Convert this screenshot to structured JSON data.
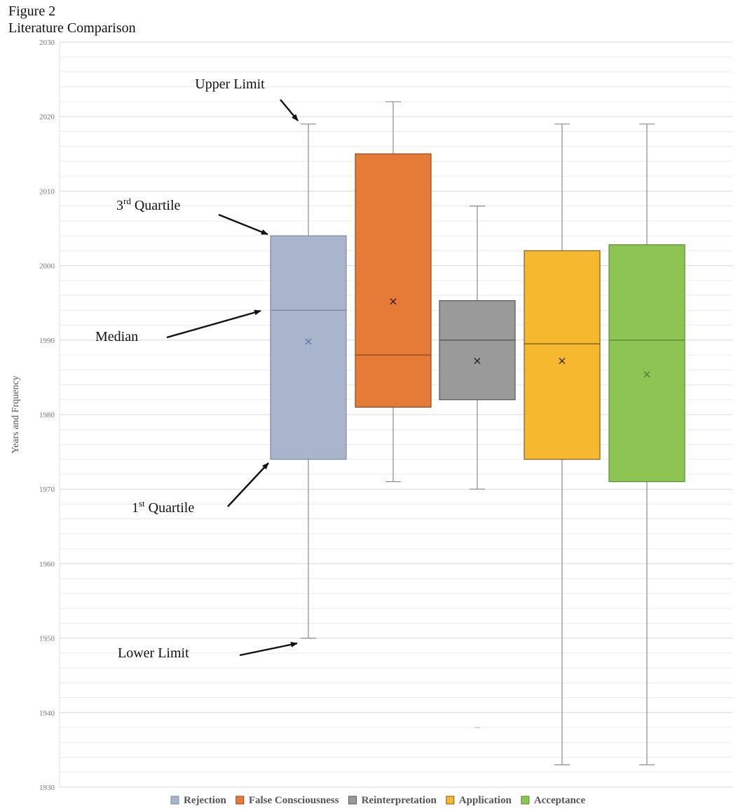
{
  "figure": {
    "number": "Figure 2",
    "title": "Literature Comparison"
  },
  "chart_data": {
    "type": "box",
    "ylabel": "Years and Frquency",
    "ylim": [
      1930,
      2030
    ],
    "yticks": [
      1930,
      1940,
      1950,
      1960,
      1970,
      1980,
      1990,
      2000,
      2010,
      2020,
      2030
    ],
    "grid": true,
    "legend_position": "bottom-right",
    "series": [
      {
        "name": "Rejection",
        "color": "#a9b5cc",
        "stroke": "#7c88a0",
        "mean_color": "#6577a3",
        "whisker_low": 1950,
        "q1": 1974,
        "median": 1994,
        "q3": 2004,
        "whisker_high": 2019,
        "mean": 1989.8
      },
      {
        "name": "False Consciousness",
        "color": "#e67a37",
        "stroke": "#8a4a22",
        "mean_color": "#3a1a08",
        "whisker_low": 1971,
        "q1": 1981,
        "median": 1988,
        "q3": 2015,
        "whisker_high": 2022,
        "mean": 1995.2
      },
      {
        "name": "Reinterpretation",
        "color": "#9a9a9a",
        "stroke": "#555555",
        "mean_color": "#222222",
        "whisker_low": 1970,
        "q1": 1982,
        "median": 1990,
        "q3": 1995.3,
        "whisker_high": 2008,
        "mean": 1987.2,
        "outliers": [
          1938
        ]
      },
      {
        "name": "Application",
        "color": "#f5b82e",
        "stroke": "#7a6020",
        "mean_color": "#3a2a08",
        "whisker_low": 1933,
        "q1": 1974,
        "median": 1989.5,
        "q3": 2002,
        "whisker_high": 2019,
        "mean": 1987.2
      },
      {
        "name": "Acceptance",
        "color": "#8dc453",
        "stroke": "#5a8a32",
        "mean_color": "#4f7e2f",
        "whisker_low": 1933,
        "q1": 1971,
        "median": 1990,
        "q3": 2002.8,
        "whisker_high": 2019,
        "mean": 1985.4
      }
    ],
    "annotations": [
      {
        "text": "Upper Limit",
        "target_series": 0,
        "target_value": 2019
      },
      {
        "text": "3rd Quartile",
        "target_series": 0,
        "target_value": 2004
      },
      {
        "text": "Median",
        "target_series": 0,
        "target_value": 1994
      },
      {
        "text": "1st Quartile",
        "target_series": 0,
        "target_value": 1974
      },
      {
        "text": "Lower Limit",
        "target_series": 0,
        "target_value": 1950
      }
    ]
  }
}
